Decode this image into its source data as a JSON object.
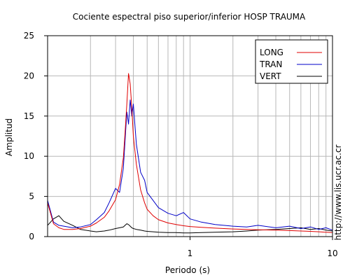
{
  "chart_data": {
    "type": "line",
    "title": "Cociente espectral piso superior/inferior  HOSP TRAUMA",
    "xlabel": "Periodo (s)",
    "ylabel": "Amplitud",
    "xscale": "log",
    "xlim": [
      0.1,
      10
    ],
    "ylim": [
      0,
      25
    ],
    "x_tick_labels": [
      "1",
      "10"
    ],
    "y_ticks": [
      0,
      5,
      10,
      15,
      20,
      25
    ],
    "grid": true,
    "legend_position": "top-right",
    "side_note": "http://www.lis.ucr.ac.cr",
    "x": [
      0.1,
      0.11,
      0.12,
      0.13,
      0.15,
      0.17,
      0.2,
      0.22,
      0.25,
      0.27,
      0.3,
      0.32,
      0.34,
      0.35,
      0.36,
      0.37,
      0.38,
      0.39,
      0.4,
      0.42,
      0.45,
      0.48,
      0.5,
      0.55,
      0.6,
      0.7,
      0.8,
      0.9,
      1.0,
      1.2,
      1.5,
      2.0,
      2.5,
      3.0,
      4.0,
      5.0,
      6.0,
      7.0,
      8.0,
      9.0,
      10.0
    ],
    "series": [
      {
        "name": "LONG",
        "color": "#e00000",
        "values": [
          4.2,
          1.6,
          1.1,
          0.9,
          0.9,
          1.0,
          1.3,
          1.7,
          2.4,
          3.2,
          4.6,
          6.5,
          9.8,
          13.0,
          16.5,
          20.3,
          19.0,
          16.0,
          12.5,
          9.0,
          5.8,
          4.2,
          3.4,
          2.6,
          2.1,
          1.7,
          1.5,
          1.35,
          1.25,
          1.15,
          1.05,
          0.95,
          0.9,
          0.85,
          0.8,
          0.75,
          0.7,
          0.65,
          0.6,
          0.55,
          0.5
        ]
      },
      {
        "name": "TRAN",
        "color": "#0000c8",
        "values": [
          4.5,
          1.8,
          1.4,
          1.3,
          1.1,
          1.2,
          1.5,
          2.1,
          3.0,
          4.2,
          6.0,
          5.5,
          8.5,
          12.0,
          15.5,
          14.0,
          17.0,
          15.0,
          16.5,
          11.5,
          8.0,
          7.0,
          5.5,
          4.5,
          3.6,
          2.9,
          2.6,
          3.0,
          2.2,
          1.8,
          1.5,
          1.3,
          1.2,
          1.4,
          1.1,
          1.3,
          1.0,
          1.2,
          0.9,
          1.1,
          0.8
        ]
      },
      {
        "name": "VERT",
        "color": "#000000",
        "values": [
          1.4,
          2.2,
          2.6,
          1.9,
          1.4,
          0.9,
          0.7,
          0.6,
          0.7,
          0.8,
          1.0,
          1.1,
          1.2,
          1.4,
          1.6,
          1.5,
          1.3,
          1.1,
          1.0,
          0.9,
          0.8,
          0.7,
          0.65,
          0.6,
          0.55,
          0.5,
          0.5,
          0.45,
          0.45,
          0.5,
          0.55,
          0.6,
          0.7,
          0.8,
          0.9,
          1.0,
          1.1,
          0.9,
          1.0,
          0.8,
          0.7
        ]
      }
    ]
  }
}
